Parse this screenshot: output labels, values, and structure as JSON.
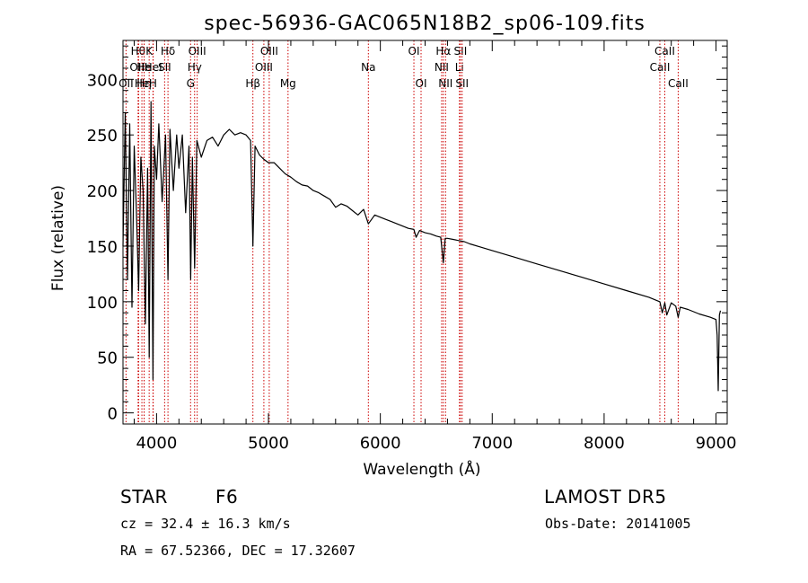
{
  "chart_data": {
    "type": "line",
    "title": "spec-56936-GAC065N18B2_sp06-109.fits",
    "xlabel": "Wavelength (Å)",
    "ylabel": "Flux (relative)",
    "xlim": [
      3700,
      9100
    ],
    "ylim": [
      -10,
      335
    ],
    "xticks": [
      4000,
      5000,
      6000,
      7000,
      8000,
      9000
    ],
    "yticks": [
      0,
      50,
      100,
      150,
      200,
      250,
      300
    ],
    "grid": false,
    "line_color": "#000000",
    "marker_color": "#cc0000",
    "series": [
      {
        "x": [
          3700,
          3720,
          3740,
          3760,
          3780,
          3800,
          3820,
          3840,
          3860,
          3880,
          3900,
          3920,
          3934,
          3950,
          3968,
          3980,
          4000,
          4020,
          4050,
          4080,
          4102,
          4120,
          4150,
          4180,
          4200,
          4230,
          4260,
          4290,
          4305,
          4320,
          4340,
          4360,
          4400,
          4450,
          4500,
          4550,
          4600,
          4650,
          4700,
          4750,
          4800,
          4840,
          4861,
          4880,
          4920,
          4960,
          5000,
          5050,
          5100,
          5150,
          5200,
          5250,
          5300,
          5350,
          5400,
          5450,
          5500,
          5550,
          5600,
          5650,
          5700,
          5750,
          5800,
          5850,
          5893,
          5950,
          6000,
          6050,
          6100,
          6150,
          6200,
          6250,
          6300,
          6320,
          6350,
          6400,
          6450,
          6500,
          6540,
          6563,
          6580,
          6600,
          6650,
          6700,
          6750,
          6800,
          6900,
          7000,
          7200,
          7400,
          7600,
          7800,
          8000,
          8200,
          8400,
          8498,
          8520,
          8542,
          8560,
          8600,
          8640,
          8662,
          8680,
          8750,
          8850,
          8950,
          9000,
          9010,
          9020,
          9030,
          9040
        ],
        "y": [
          150,
          270,
          120,
          260,
          95,
          240,
          180,
          110,
          230,
          200,
          80,
          220,
          50,
          280,
          30,
          240,
          210,
          260,
          190,
          250,
          120,
          255,
          200,
          250,
          220,
          250,
          180,
          240,
          120,
          230,
          130,
          245,
          230,
          245,
          248,
          240,
          250,
          255,
          250,
          252,
          250,
          245,
          150,
          240,
          232,
          228,
          225,
          225,
          220,
          215,
          212,
          208,
          205,
          204,
          200,
          198,
          195,
          192,
          185,
          188,
          186,
          182,
          178,
          183,
          170,
          178,
          176,
          174,
          172,
          170,
          168,
          166,
          165,
          158,
          164,
          162,
          161,
          159,
          158,
          135,
          157,
          157,
          156,
          155,
          154,
          152,
          149,
          146,
          140,
          134,
          128,
          122,
          116,
          110,
          104,
          100,
          90,
          99,
          88,
          99,
          96,
          86,
          95,
          93,
          89,
          86,
          84,
          70,
          20,
          88,
          92
        ]
      }
    ],
    "line_markers": [
      {
        "wl": 3727,
        "label": "OII",
        "row": 2
      },
      {
        "wl": 3835,
        "label": "Hθ",
        "row": 0
      },
      {
        "wl": 3840,
        "label": "OIII",
        "row": 1
      },
      {
        "wl": 3869,
        "label": "He",
        "row": 2
      },
      {
        "wl": 3889,
        "label": "Hη",
        "row": 2
      },
      {
        "wl": 3889,
        "label": "He",
        "row": 1
      },
      {
        "wl": 3934,
        "label": "K",
        "row": 0
      },
      {
        "wl": 3968,
        "label": "H",
        "row": 2
      },
      {
        "wl": 3970,
        "label": "HeI",
        "row": 1
      },
      {
        "wl": 4072,
        "label": "SII",
        "row": 1
      },
      {
        "wl": 4102,
        "label": "Hδ",
        "row": 0
      },
      {
        "wl": 4304,
        "label": "G",
        "row": 2
      },
      {
        "wl": 4340,
        "label": "Hγ",
        "row": 1
      },
      {
        "wl": 4363,
        "label": "OIII",
        "row": 0
      },
      {
        "wl": 4861,
        "label": "Hβ",
        "row": 2
      },
      {
        "wl": 4959,
        "label": "OIII",
        "row": 1
      },
      {
        "wl": 5007,
        "label": "OIII",
        "row": 0
      },
      {
        "wl": 5175,
        "label": "Mg",
        "row": 2
      },
      {
        "wl": 5893,
        "label": "Na",
        "row": 1
      },
      {
        "wl": 6300,
        "label": "OI",
        "row": 0
      },
      {
        "wl": 6364,
        "label": "OI",
        "row": 2
      },
      {
        "wl": 6548,
        "label": "NII",
        "row": 1
      },
      {
        "wl": 6563,
        "label": "Hα",
        "row": 0
      },
      {
        "wl": 6583,
        "label": "NII",
        "row": 2
      },
      {
        "wl": 6707,
        "label": "Li",
        "row": 1
      },
      {
        "wl": 6716,
        "label": "SII",
        "row": 0
      },
      {
        "wl": 6731,
        "label": "SII",
        "row": 2
      },
      {
        "wl": 8498,
        "label": "CaII",
        "row": 1
      },
      {
        "wl": 8542,
        "label": "CaII",
        "row": 0
      },
      {
        "wl": 8662,
        "label": "CaII",
        "row": 2
      }
    ]
  },
  "info": {
    "class": "STAR",
    "subclass": "F6",
    "survey": "LAMOST  DR5",
    "redshift": "cz = 32.4 ± 16.3 km/s",
    "obs_date": "Obs-Date: 20141005",
    "coords": "RA =  67.52366, DEC =  17.32607"
  }
}
